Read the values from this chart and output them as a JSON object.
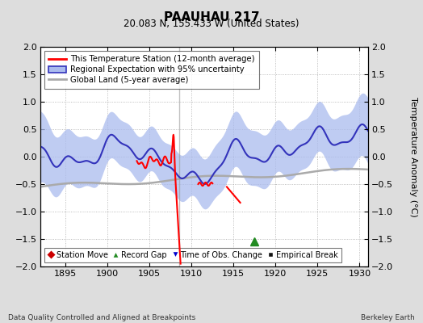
{
  "title": "PAAUHAU 217",
  "subtitle": "20.083 N, 155.433 W (United States)",
  "ylabel": "Temperature Anomaly (°C)",
  "xlabel_left": "Data Quality Controlled and Aligned at Breakpoints",
  "xlabel_right": "Berkeley Earth",
  "xlim": [
    1892,
    1931
  ],
  "ylim": [
    -2,
    2
  ],
  "yticks": [
    -2,
    -1.5,
    -1,
    -0.5,
    0,
    0.5,
    1,
    1.5,
    2
  ],
  "xticks": [
    1895,
    1900,
    1905,
    1910,
    1915,
    1920,
    1925,
    1930
  ],
  "bg_color": "#dddddd",
  "plot_bg_color": "#ffffff",
  "regional_color": "#3333bb",
  "regional_fill_color": "#aabbee",
  "station_color": "#ff0000",
  "global_land_color": "#aaaaaa",
  "legend_items": [
    {
      "label": "This Temperature Station (12-month average)",
      "color": "#ff0000",
      "lw": 2
    },
    {
      "label": "Regional Expectation with 95% uncertainty",
      "color": "#3333bb",
      "lw": 2
    },
    {
      "label": "Global Land (5-year average)",
      "color": "#aaaaaa",
      "lw": 2
    }
  ],
  "marker_legend": [
    {
      "label": "Station Move",
      "color": "#cc0000",
      "marker": "D"
    },
    {
      "label": "Record Gap",
      "color": "#228B22",
      "marker": "^"
    },
    {
      "label": "Time of Obs. Change",
      "color": "#0000cc",
      "marker": "v"
    },
    {
      "label": "Empirical Break",
      "color": "#111111",
      "marker": "s"
    }
  ],
  "record_gap_x": 1917.5,
  "record_gap_y": -1.55,
  "vertical_line_x": 1908.5
}
